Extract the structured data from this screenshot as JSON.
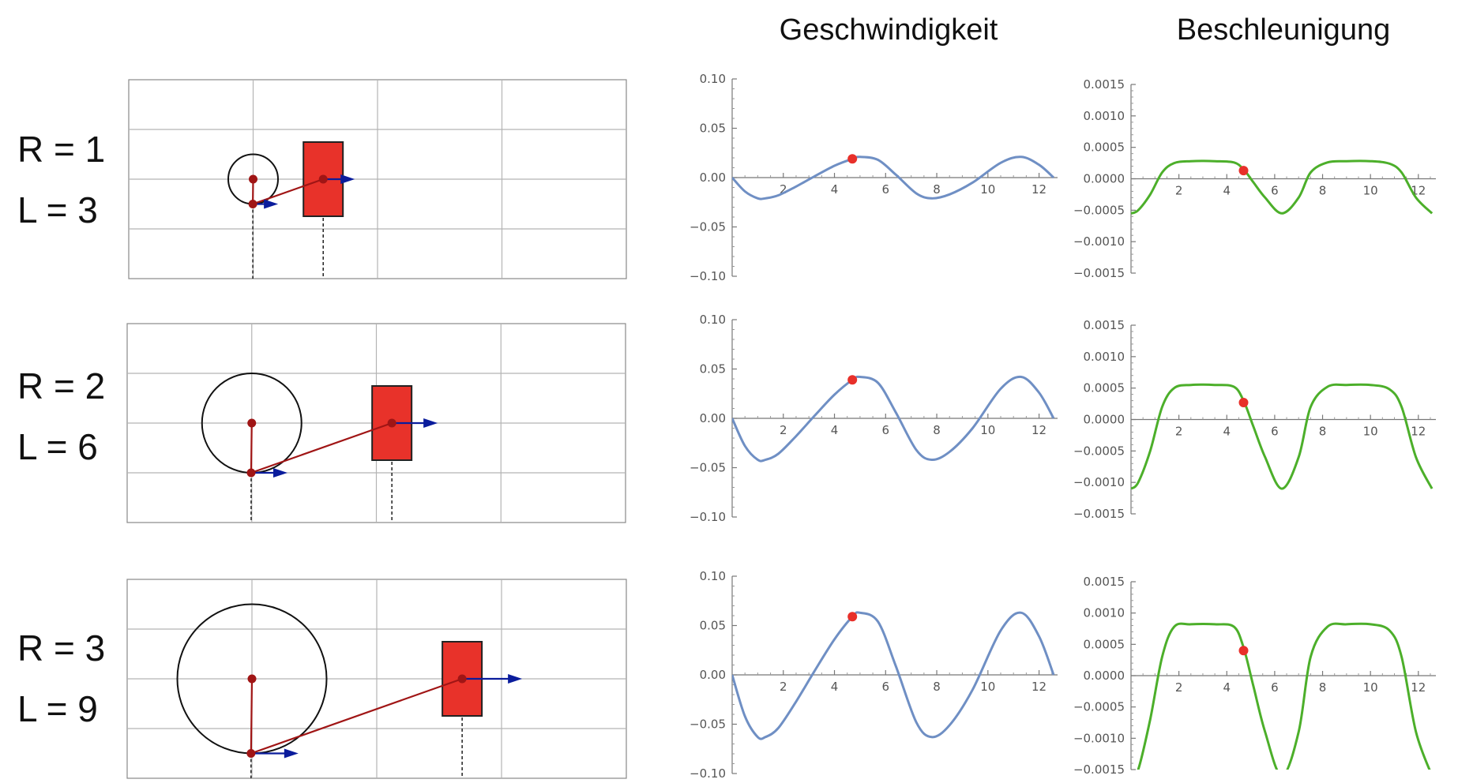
{
  "headers": {
    "velocity": "Geschwindigkeit",
    "acceleration": "Beschleunigung"
  },
  "colors": {
    "velocity_curve": "#6f8fc4",
    "acceleration_curve": "#4caf2a",
    "marker": "#e8302a",
    "block": "#e8322a",
    "rod": "#a01515",
    "arrow": "#0a1c9c",
    "grid": "#b4b4b4"
  },
  "rows": [
    {
      "R_label": "R = 1",
      "L_label": "L = 3",
      "R": 1,
      "L": 3
    },
    {
      "R_label": "R = 2",
      "L_label": "L = 6",
      "R": 2,
      "L": 6
    },
    {
      "R_label": "R = 3",
      "L_label": "L = 9",
      "R": 3,
      "L": 9
    }
  ],
  "chart_data": [
    {
      "type": "line",
      "name": "velocity-row-1",
      "x": [
        0,
        0.5,
        1.0,
        1.3,
        1.8,
        2.5,
        3.2,
        4.0,
        4.7,
        5.0,
        5.7,
        6.4,
        7.2,
        7.8,
        8.5,
        9.4,
        10.5,
        11.3,
        12.0,
        12.57
      ],
      "y": [
        0,
        -0.014,
        -0.021,
        -0.021,
        -0.018,
        -0.009,
        0.001,
        0.012,
        0.019,
        0.021,
        0.018,
        0.003,
        -0.016,
        -0.021,
        -0.017,
        -0.005,
        0.015,
        0.021,
        0.013,
        0
      ],
      "xlim": [
        0,
        12.6
      ],
      "ylim": [
        -0.1,
        0.1
      ],
      "xticks": [
        "2",
        "4",
        "6",
        "8",
        "10",
        "12"
      ],
      "yticks": [
        "0.10",
        "0.05",
        "0.00",
        "−0.05",
        "−0.10"
      ],
      "marker": {
        "x": 4.7,
        "y": 0.019
      }
    },
    {
      "type": "line",
      "name": "acceleration-row-1",
      "x": [
        0,
        0.3,
        0.8,
        1.3,
        1.8,
        2.5,
        3.5,
        4.3,
        4.7,
        5.1,
        5.6,
        6.3,
        7.0,
        7.5,
        8.2,
        9.0,
        10.0,
        10.8,
        11.3,
        11.9,
        12.57
      ],
      "y": [
        -0.00055,
        -0.0005,
        -0.00025,
        0.0001,
        0.00025,
        0.00028,
        0.00028,
        0.00026,
        0.00015,
        -5e-05,
        -0.0003,
        -0.00055,
        -0.0003,
        0.0001,
        0.00026,
        0.00028,
        0.00028,
        0.00024,
        0.0001,
        -0.0003,
        -0.00055
      ],
      "xlim": [
        0,
        12.6
      ],
      "ylim": [
        -0.0015,
        0.0015
      ],
      "xticks": [
        "2",
        "4",
        "6",
        "8",
        "10",
        "12"
      ],
      "yticks": [
        "0.0015",
        "0.0010",
        "0.0005",
        "0.0000",
        "−0.0005",
        "−0.0010",
        "−0.0015"
      ],
      "marker": {
        "x": 4.7,
        "y": 0.00013
      }
    },
    {
      "type": "line",
      "name": "velocity-row-2",
      "x": [
        0,
        0.5,
        1.0,
        1.3,
        1.8,
        2.5,
        3.2,
        4.0,
        4.7,
        5.0,
        5.7,
        6.4,
        7.2,
        7.8,
        8.5,
        9.4,
        10.5,
        11.3,
        12.0,
        12.57
      ],
      "y": [
        0,
        -0.028,
        -0.042,
        -0.042,
        -0.036,
        -0.018,
        0.002,
        0.024,
        0.039,
        0.042,
        0.036,
        0.006,
        -0.032,
        -0.042,
        -0.034,
        -0.01,
        0.03,
        0.042,
        0.026,
        0
      ],
      "xlim": [
        0,
        12.6
      ],
      "ylim": [
        -0.1,
        0.1
      ],
      "xticks": [
        "2",
        "4",
        "6",
        "8",
        "10",
        "12"
      ],
      "yticks": [
        "0.10",
        "0.05",
        "0.00",
        "−0.05",
        "−0.10"
      ],
      "marker": {
        "x": 4.7,
        "y": 0.039
      }
    },
    {
      "type": "line",
      "name": "acceleration-row-2",
      "x": [
        0,
        0.3,
        0.8,
        1.3,
        1.8,
        2.5,
        3.5,
        4.3,
        4.7,
        5.1,
        5.6,
        6.3,
        7.0,
        7.5,
        8.2,
        9.0,
        10.0,
        10.8,
        11.3,
        11.9,
        12.57
      ],
      "y": [
        -0.0011,
        -0.001,
        -0.0005,
        0.0002,
        0.0005,
        0.00055,
        0.00055,
        0.00052,
        0.0003,
        -0.0001,
        -0.0006,
        -0.0011,
        -0.0006,
        0.0002,
        0.00052,
        0.00055,
        0.00055,
        0.00048,
        0.0002,
        -0.0006,
        -0.0011
      ],
      "xlim": [
        0,
        12.6
      ],
      "ylim": [
        -0.0015,
        0.0015
      ],
      "xticks": [
        "2",
        "4",
        "6",
        "8",
        "10",
        "12"
      ],
      "yticks": [
        "0.0015",
        "0.0010",
        "0.0005",
        "0.0000",
        "−0.0005",
        "−0.0010",
        "−0.0015"
      ],
      "marker": {
        "x": 4.7,
        "y": 0.00027
      }
    },
    {
      "type": "line",
      "name": "velocity-row-3",
      "x": [
        0,
        0.5,
        1.0,
        1.3,
        1.8,
        2.5,
        3.2,
        4.0,
        4.7,
        5.0,
        5.7,
        6.4,
        7.2,
        7.8,
        8.5,
        9.4,
        10.5,
        11.3,
        12.0,
        12.57
      ],
      "y": [
        0,
        -0.042,
        -0.063,
        -0.063,
        -0.054,
        -0.027,
        0.003,
        0.036,
        0.059,
        0.063,
        0.054,
        0.009,
        -0.048,
        -0.063,
        -0.051,
        -0.015,
        0.045,
        0.063,
        0.039,
        0
      ],
      "xlim": [
        0,
        12.6
      ],
      "ylim": [
        -0.1,
        0.1
      ],
      "xticks": [
        "2",
        "4",
        "6",
        "8",
        "10",
        "12"
      ],
      "yticks": [
        "0.10",
        "0.05",
        "0.00",
        "−0.05",
        "−0.10"
      ],
      "marker": {
        "x": 4.7,
        "y": 0.059
      }
    },
    {
      "type": "line",
      "name": "acceleration-row-3",
      "x": [
        0,
        0.3,
        0.8,
        1.3,
        1.8,
        2.5,
        3.5,
        4.3,
        4.7,
        5.1,
        5.6,
        6.3,
        7.0,
        7.5,
        8.2,
        9.0,
        10.0,
        10.8,
        11.3,
        11.9,
        12.57
      ],
      "y": [
        -0.0016,
        -0.0015,
        -0.0007,
        0.0003,
        0.00078,
        0.00082,
        0.00082,
        0.00078,
        0.00045,
        -0.00015,
        -0.0009,
        -0.0016,
        -0.0009,
        0.0003,
        0.00078,
        0.00082,
        0.00082,
        0.00072,
        0.0003,
        -0.0009,
        -0.0016
      ],
      "xlim": [
        0,
        12.6
      ],
      "ylim": [
        -0.0015,
        0.0015
      ],
      "xticks": [
        "2",
        "4",
        "6",
        "8",
        "10",
        "12"
      ],
      "yticks": [
        "0.0015",
        "0.0010",
        "0.0005",
        "0.0000",
        "−0.0005",
        "−0.0010",
        "−0.0015"
      ],
      "marker": {
        "x": 4.7,
        "y": 0.0004
      }
    }
  ]
}
